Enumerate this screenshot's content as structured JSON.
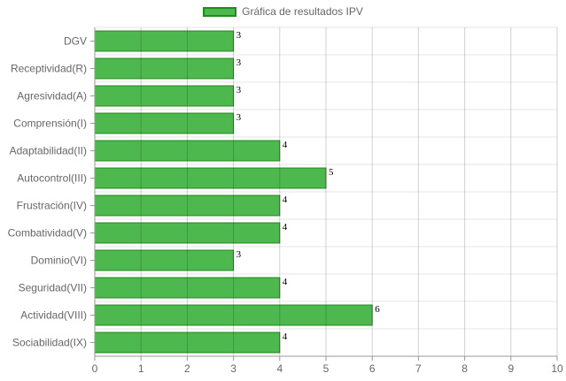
{
  "chart_data": {
    "type": "bar",
    "orientation": "horizontal",
    "legend": {
      "position": "top",
      "label": "Gráfica de resultados IPV"
    },
    "categories": [
      "DGV",
      "Receptividad(R)",
      "Agresividad(A)",
      "Comprensión(I)",
      "Adaptabilidad(II)",
      "Autocontrol(III)",
      "Frustración(IV)",
      "Combatividad(V)",
      "Dominio(VI)",
      "Seguridad(VII)",
      "Actividad(VIII)",
      "Sociabilidad(IX)"
    ],
    "series": [
      {
        "name": "Gráfica de resultados IPV",
        "values": [
          3,
          3,
          3,
          3,
          4,
          5,
          4,
          4,
          3,
          4,
          6,
          4
        ]
      }
    ],
    "x_ticks": [
      "0",
      "1",
      "2",
      "3",
      "4",
      "5",
      "6",
      "7",
      "8",
      "9",
      "10"
    ],
    "xlim": [
      0,
      10
    ],
    "grid": true,
    "data_labels": true,
    "colors": {
      "bar_fill": "#4db84d",
      "bar_border": "#1f8a1f",
      "grid": "#e6e6e6",
      "axis": "#999999",
      "text": "#666666"
    }
  }
}
